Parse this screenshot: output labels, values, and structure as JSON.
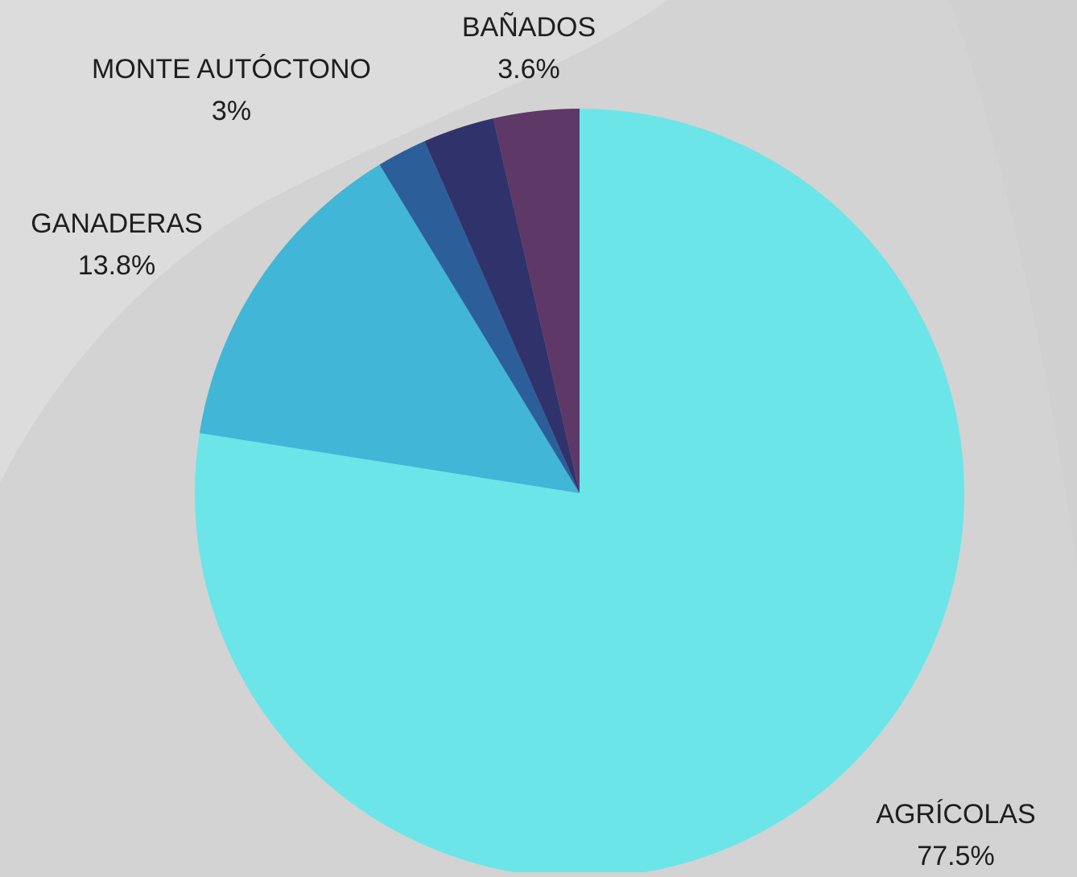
{
  "chart_data": {
    "type": "pie",
    "start_angle_deg": 0,
    "direction": "clockwise",
    "slices": [
      {
        "label": "AGRÍCOLAS",
        "value": 77.5,
        "display": "77.5%",
        "color": "#6ce5e9"
      },
      {
        "label": "GANADERAS",
        "value": 13.8,
        "display": "13.8%",
        "color": "#42b6d6"
      },
      {
        "label": "",
        "value": 2.1,
        "display": "",
        "color": "#2c5f99"
      },
      {
        "label": "MONTE AUTÓCTONO",
        "value": 3.0,
        "display": "3%",
        "color": "#30336b"
      },
      {
        "label": "BAÑADOS",
        "value": 3.6,
        "display": "3.6%",
        "color": "#5e3866"
      }
    ]
  }
}
